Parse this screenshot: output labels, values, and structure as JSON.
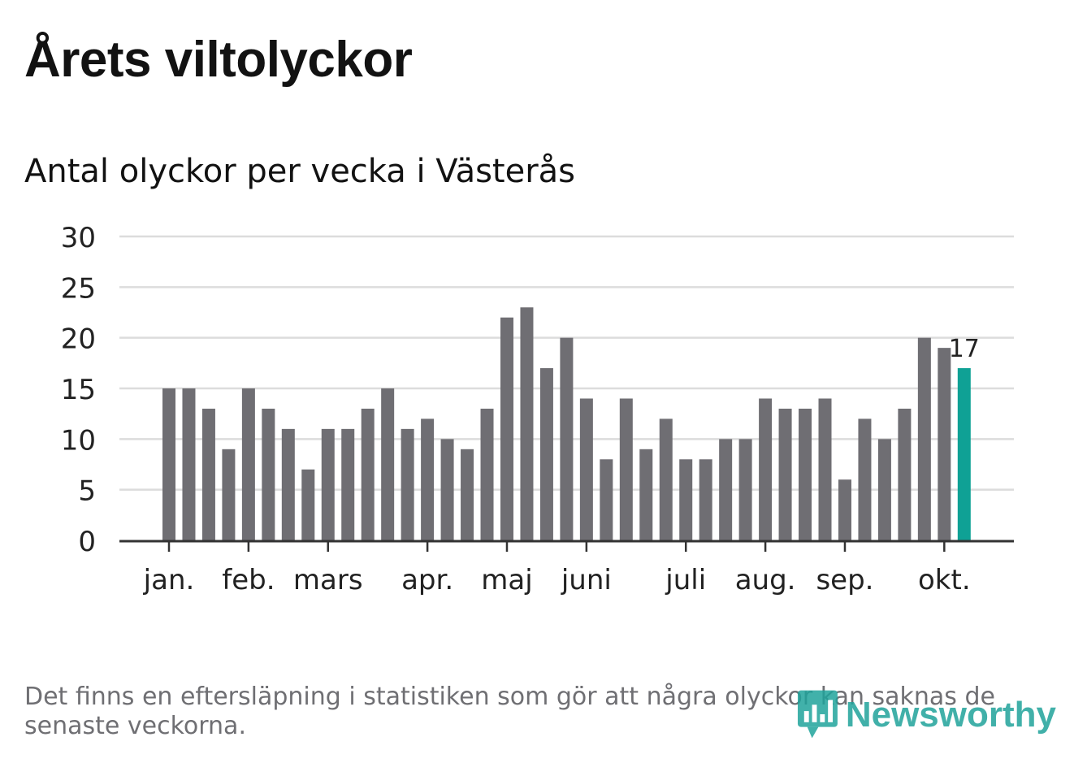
{
  "header": {
    "title": "Årets viltolyckor",
    "subtitle": "Antal olyckor per vecka i Västerås"
  },
  "footer": {
    "note": "Det finns en eftersläpning i statistiken som gör att några olyckor kan saknas de senaste veckorna.",
    "brand": "Newsworthy"
  },
  "colors": {
    "bar": "#6f6e73",
    "highlight": "#0fa195",
    "grid": "#dcdcdc",
    "axis": "#333333",
    "text": "#222222",
    "brand": "#20a39b"
  },
  "chart_data": {
    "type": "bar",
    "ylim": [
      0,
      30
    ],
    "yticks": [
      0,
      5,
      10,
      15,
      20,
      25,
      30
    ],
    "grid": true,
    "values": [
      15,
      15,
      13,
      9,
      15,
      13,
      11,
      7,
      11,
      11,
      13,
      15,
      11,
      12,
      10,
      9,
      13,
      22,
      23,
      17,
      20,
      14,
      8,
      14,
      9,
      12,
      8,
      8,
      10,
      10,
      14,
      13,
      13,
      14,
      6,
      12,
      10,
      13,
      20,
      19,
      17
    ],
    "month_labels": [
      {
        "label": "jan.",
        "index": 0
      },
      {
        "label": "feb.",
        "index": 4
      },
      {
        "label": "mars",
        "index": 8
      },
      {
        "label": "apr.",
        "index": 13
      },
      {
        "label": "maj",
        "index": 17
      },
      {
        "label": "juni",
        "index": 21
      },
      {
        "label": "juli",
        "index": 26
      },
      {
        "label": "aug.",
        "index": 30
      },
      {
        "label": "sep.",
        "index": 34
      },
      {
        "label": "okt.",
        "index": 39
      }
    ],
    "highlight_index": 40,
    "highlight_label": "17"
  }
}
